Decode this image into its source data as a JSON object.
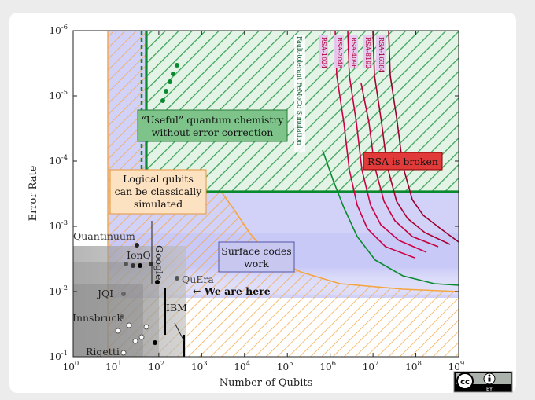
{
  "chart_data": {
    "type": "scatter",
    "xlabel": "Number of Qubits",
    "ylabel": "Error Rate",
    "x_scale": "log",
    "y_scale": "log",
    "xlim": [
      1,
      1000000000
    ],
    "ylim_error_rate": [
      0.1,
      1e-06
    ],
    "x_ticks": [
      "10^0",
      "10^1",
      "10^2",
      "10^3",
      "10^4",
      "10^5",
      "10^6",
      "10^7",
      "10^8",
      "10^9"
    ],
    "y_ticks": [
      "10^-6",
      "10^-5",
      "10^-4",
      "10^-3",
      "10^-2",
      "10^-1"
    ],
    "grid": false,
    "regions": [
      {
        "label": "“Useful” quantum chemistry\nwithout error correction",
        "color": "#0a8a2e"
      },
      {
        "label": "Logical qubits\ncan be classically\nsimulated",
        "color": "#f5a540"
      },
      {
        "label": "Surface codes\nwork",
        "color": "#8c8cf0"
      },
      {
        "label": "RSA is broken",
        "color": "#d40000"
      }
    ],
    "curves": [
      {
        "name": "Fault-tolerant FeMoCo Simulation",
        "color": "#0a8a2e"
      },
      {
        "name": "RSA-1024",
        "color": "#cc0044"
      },
      {
        "name": "RSA-2048",
        "color": "#cc0044"
      },
      {
        "name": "RSA-4096",
        "color": "#cc0044"
      },
      {
        "name": "RSA-8192",
        "color": "#aa0033"
      },
      {
        "name": "RSA-16384",
        "color": "#990033"
      }
    ],
    "devices": [
      {
        "name": "Quantinuum"
      },
      {
        "name": "IonQ"
      },
      {
        "name": "Google"
      },
      {
        "name": "QuEra"
      },
      {
        "name": "JQI"
      },
      {
        "name": "Innsbruck"
      },
      {
        "name": "IBM"
      },
      {
        "name": "Rigetti"
      }
    ],
    "annotation": "← We are here"
  },
  "license_badge": {
    "text": "BY"
  }
}
